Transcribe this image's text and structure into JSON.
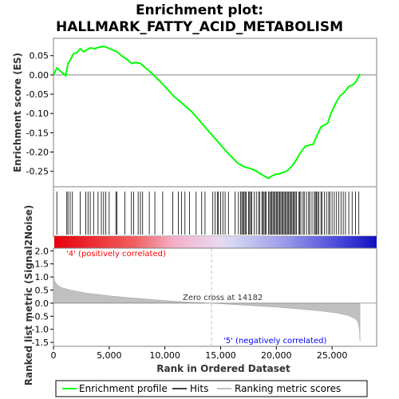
{
  "chart_data": {
    "type": "line",
    "title_line1": "Enrichment plot:",
    "title_line2": "HALLMARK_FATTY_ACID_METABOLISM",
    "ylabel_top": "Enrichment score (ES)",
    "ylabel_bottom": "Ranked list metric (Signal2Noise)",
    "xlabel": "Rank in Ordered Dataset",
    "x_range": [
      0,
      29000
    ],
    "es_ylim": [
      -0.29,
      0.095
    ],
    "metric_ylim": [
      -1.65,
      2.1
    ],
    "x_ticks": [
      0,
      5000,
      10000,
      15000,
      20000,
      25000
    ],
    "x_tick_labels": [
      "0",
      "5,000",
      "10,000",
      "15,000",
      "20,000",
      "25,000"
    ],
    "es_ticks": [
      0.05,
      0.0,
      -0.05,
      -0.1,
      -0.15,
      -0.2,
      -0.25
    ],
    "es_tick_labels": [
      "0.05",
      "0.00",
      "-0.05",
      "-0.10",
      "-0.15",
      "-0.20",
      "-0.25"
    ],
    "metric_ticks": [
      2.0,
      1.5,
      1.0,
      0.5,
      0.0,
      -0.5,
      -1.0,
      -1.5
    ],
    "metric_tick_labels": [
      "2.0",
      "1.5",
      "1.0",
      "0.5",
      "0.0",
      "-0.5",
      "-1.0",
      "-1.5"
    ],
    "zero_cross_label": "Zero cross at 14182",
    "zero_cross_rank": 14182,
    "pos_label": "'4' (positively correlated)",
    "neg_label": "'5' (negatively correlated)",
    "legend": [
      "Enrichment profile",
      "Hits",
      "Ranking metric scores"
    ],
    "colors": {
      "es_line": "#00ff00",
      "hits": "#000000",
      "metric_fill": "#c0c0c0",
      "pos_label": "#ff0000",
      "neg_label": "#0000ff",
      "zero_line": "#c0c0c0"
    },
    "es_series": {
      "name": "Enrichment profile",
      "x": [
        0,
        300,
        700,
        1100,
        1300,
        1500,
        1800,
        2100,
        2400,
        2700,
        3000,
        3300,
        3700,
        4100,
        4500,
        4900,
        5300,
        5700,
        6100,
        6600,
        7000,
        7400,
        7800,
        8200,
        8800,
        9500,
        10000,
        10800,
        11600,
        12400,
        13000,
        13600,
        14200,
        14800,
        15400,
        16000,
        16500,
        17000,
        17300,
        17700,
        18100,
        18500,
        18900,
        19300,
        19600,
        19900,
        20300,
        20700,
        21000,
        21400,
        21800,
        22200,
        22600,
        23000,
        23300,
        23600,
        24000,
        24300,
        24600,
        24900,
        25300,
        25700,
        26100,
        26500,
        26900,
        27200,
        27500
      ],
      "y": [
        0.0,
        0.018,
        0.008,
        -0.002,
        0.03,
        0.038,
        0.055,
        0.058,
        0.068,
        0.06,
        0.065,
        0.07,
        0.068,
        0.072,
        0.074,
        0.07,
        0.065,
        0.06,
        0.05,
        0.04,
        0.03,
        0.032,
        0.03,
        0.02,
        0.005,
        -0.015,
        -0.03,
        -0.055,
        -0.075,
        -0.095,
        -0.115,
        -0.135,
        -0.155,
        -0.175,
        -0.195,
        -0.213,
        -0.228,
        -0.237,
        -0.24,
        -0.243,
        -0.248,
        -0.255,
        -0.262,
        -0.268,
        -0.262,
        -0.258,
        -0.256,
        -0.252,
        -0.248,
        -0.236,
        -0.22,
        -0.2,
        -0.185,
        -0.182,
        -0.18,
        -0.16,
        -0.135,
        -0.13,
        -0.125,
        -0.1,
        -0.075,
        -0.055,
        -0.045,
        -0.03,
        -0.025,
        -0.015,
        0.003
      ]
    },
    "hits": [
      300,
      1200,
      1300,
      1500,
      1700,
      2400,
      2900,
      3100,
      3300,
      3600,
      4000,
      4300,
      4500,
      4700,
      5000,
      5600,
      5700,
      6400,
      7000,
      7200,
      7600,
      7800,
      8000,
      8600,
      9100,
      9800,
      10700,
      11200,
      11500,
      11800,
      12200,
      12800,
      13300,
      13600,
      14300,
      14500,
      14700,
      14800,
      15000,
      15200,
      15400,
      15700,
      16300,
      16600,
      16800,
      16900,
      17000,
      17100,
      17200,
      17300,
      17500,
      17600,
      17700,
      17800,
      18000,
      18200,
      18400,
      18500,
      18700,
      18800,
      18900,
      19000,
      19100,
      19300,
      19400,
      19500,
      19600,
      19700,
      19800,
      19900,
      20000,
      20100,
      20200,
      20300,
      20400,
      20500,
      20600,
      20700,
      20800,
      20900,
      21000,
      21100,
      21200,
      21300,
      21400,
      21500,
      21600,
      21700,
      21800,
      22000,
      22100,
      22200,
      22400,
      22500,
      22700,
      22900,
      23000,
      23200,
      23400,
      23500,
      23600,
      23700,
      23800,
      24000,
      24100,
      24300,
      24500,
      24700,
      24800,
      25000,
      25200,
      25400,
      25600,
      25800,
      26000,
      26200,
      26500,
      26800,
      27100,
      27400
    ],
    "metric_series": {
      "name": "Ranking metric scores",
      "x": [
        0,
        100,
        300,
        700,
        1500,
        3000,
        5000,
        7000,
        9000,
        11000,
        13000,
        14182,
        16000,
        18000,
        20000,
        22000,
        24000,
        25500,
        26500,
        27000,
        27300,
        27450,
        27500
      ],
      "y": [
        1.15,
        0.85,
        0.72,
        0.6,
        0.5,
        0.38,
        0.28,
        0.2,
        0.13,
        0.07,
        0.02,
        0.0,
        -0.05,
        -0.1,
        -0.15,
        -0.22,
        -0.3,
        -0.38,
        -0.48,
        -0.58,
        -0.7,
        -1.0,
        -1.45
      ]
    }
  }
}
